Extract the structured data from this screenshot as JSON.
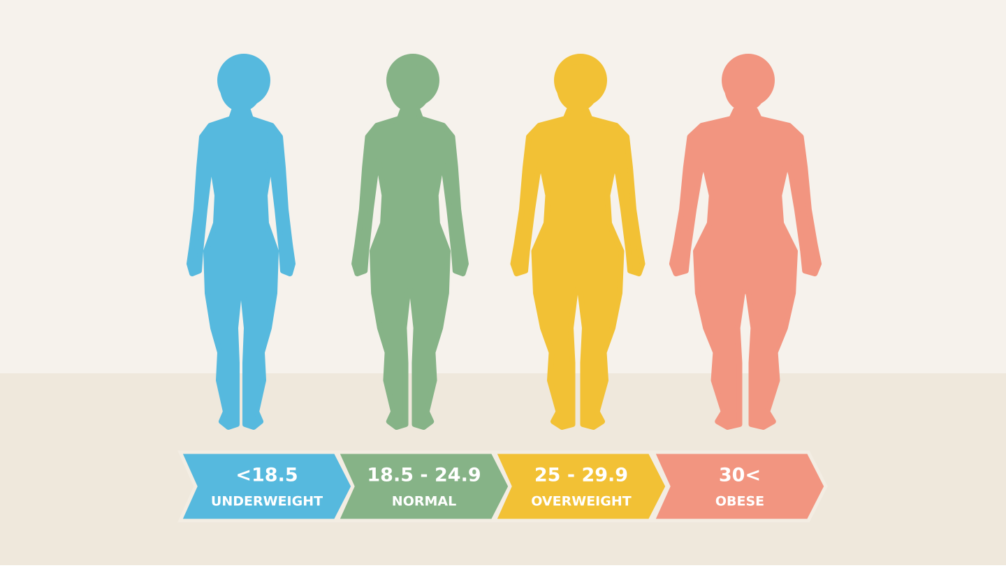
{
  "categories": [
    {
      "range": "<18.5",
      "label": "UNDERWEIGHT",
      "color": "#56b9de"
    },
    {
      "range": "18.5 - 24.9",
      "label": "NORMAL",
      "color": "#86b387"
    },
    {
      "range": "25 - 29.9",
      "label": "OVERWEIGHT",
      "color": "#f2c135"
    },
    {
      "range": "30<",
      "label": "OBESE",
      "color": "#f29580"
    }
  ]
}
